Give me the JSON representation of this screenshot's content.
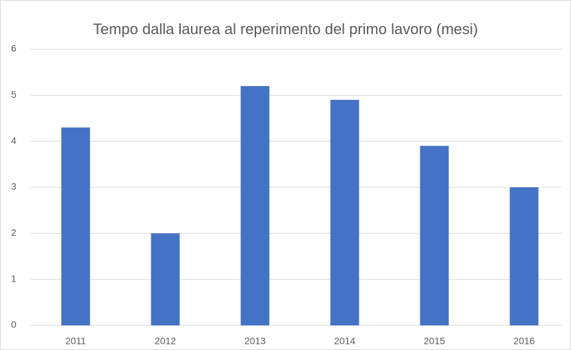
{
  "chart_data": {
    "type": "bar",
    "title": "Tempo dalla laurea al reperimento del primo lavoro (mesi)",
    "categories": [
      "2011",
      "2012",
      "2013",
      "2014",
      "2015",
      "2016"
    ],
    "values": [
      4.3,
      2.0,
      5.2,
      4.9,
      3.9,
      3.0
    ],
    "color": "#4472c4",
    "ylim": [
      0,
      6
    ],
    "yticks": [
      0,
      1,
      2,
      3,
      4,
      5,
      6
    ],
    "grid": true
  }
}
